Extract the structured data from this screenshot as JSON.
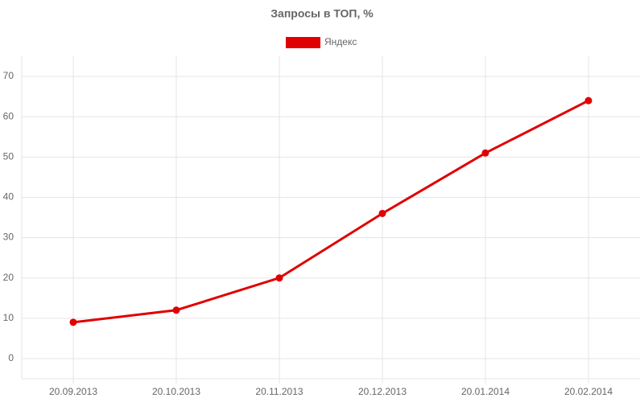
{
  "chart_data": {
    "type": "line",
    "title": "Запросы в ТОП, %",
    "categories": [
      "20.09.2013",
      "20.10.2013",
      "20.11.2013",
      "20.12.2013",
      "20.01.2014",
      "20.02.2014"
    ],
    "series": [
      {
        "name": "Яндекс",
        "color": "#e00000",
        "values": [
          9,
          12,
          20,
          36,
          51,
          64
        ]
      }
    ],
    "ylim": [
      -5,
      75
    ],
    "yticks": [
      0,
      10,
      20,
      30,
      40,
      50,
      60,
      70
    ],
    "grid": true,
    "legend": "top"
  }
}
